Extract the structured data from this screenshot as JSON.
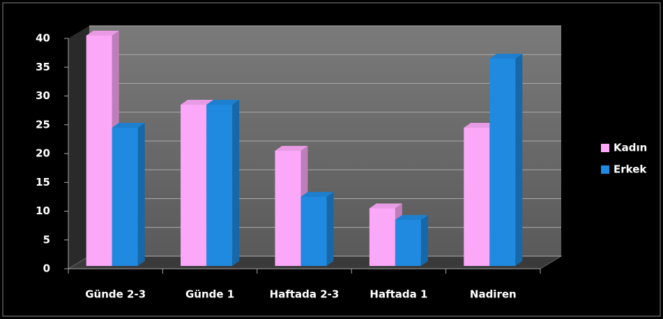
{
  "chart_data": {
    "type": "bar3d",
    "categories": [
      "Günde 2-3",
      "Günde 1",
      "Haftada 2-3",
      "Haftada 1",
      "Nadiren"
    ],
    "series": [
      {
        "name": "Kadın",
        "color": "#fca8f8",
        "values": [
          40,
          28,
          20,
          10,
          24
        ]
      },
      {
        "name": "Erkek",
        "color": "#1f8ae0",
        "values": [
          24,
          28,
          12,
          8,
          36
        ]
      }
    ],
    "ylim": [
      0,
      40
    ],
    "yticks": [
      0,
      5,
      10,
      15,
      20,
      25,
      30,
      35,
      40
    ],
    "grid": true,
    "legend": "right"
  }
}
